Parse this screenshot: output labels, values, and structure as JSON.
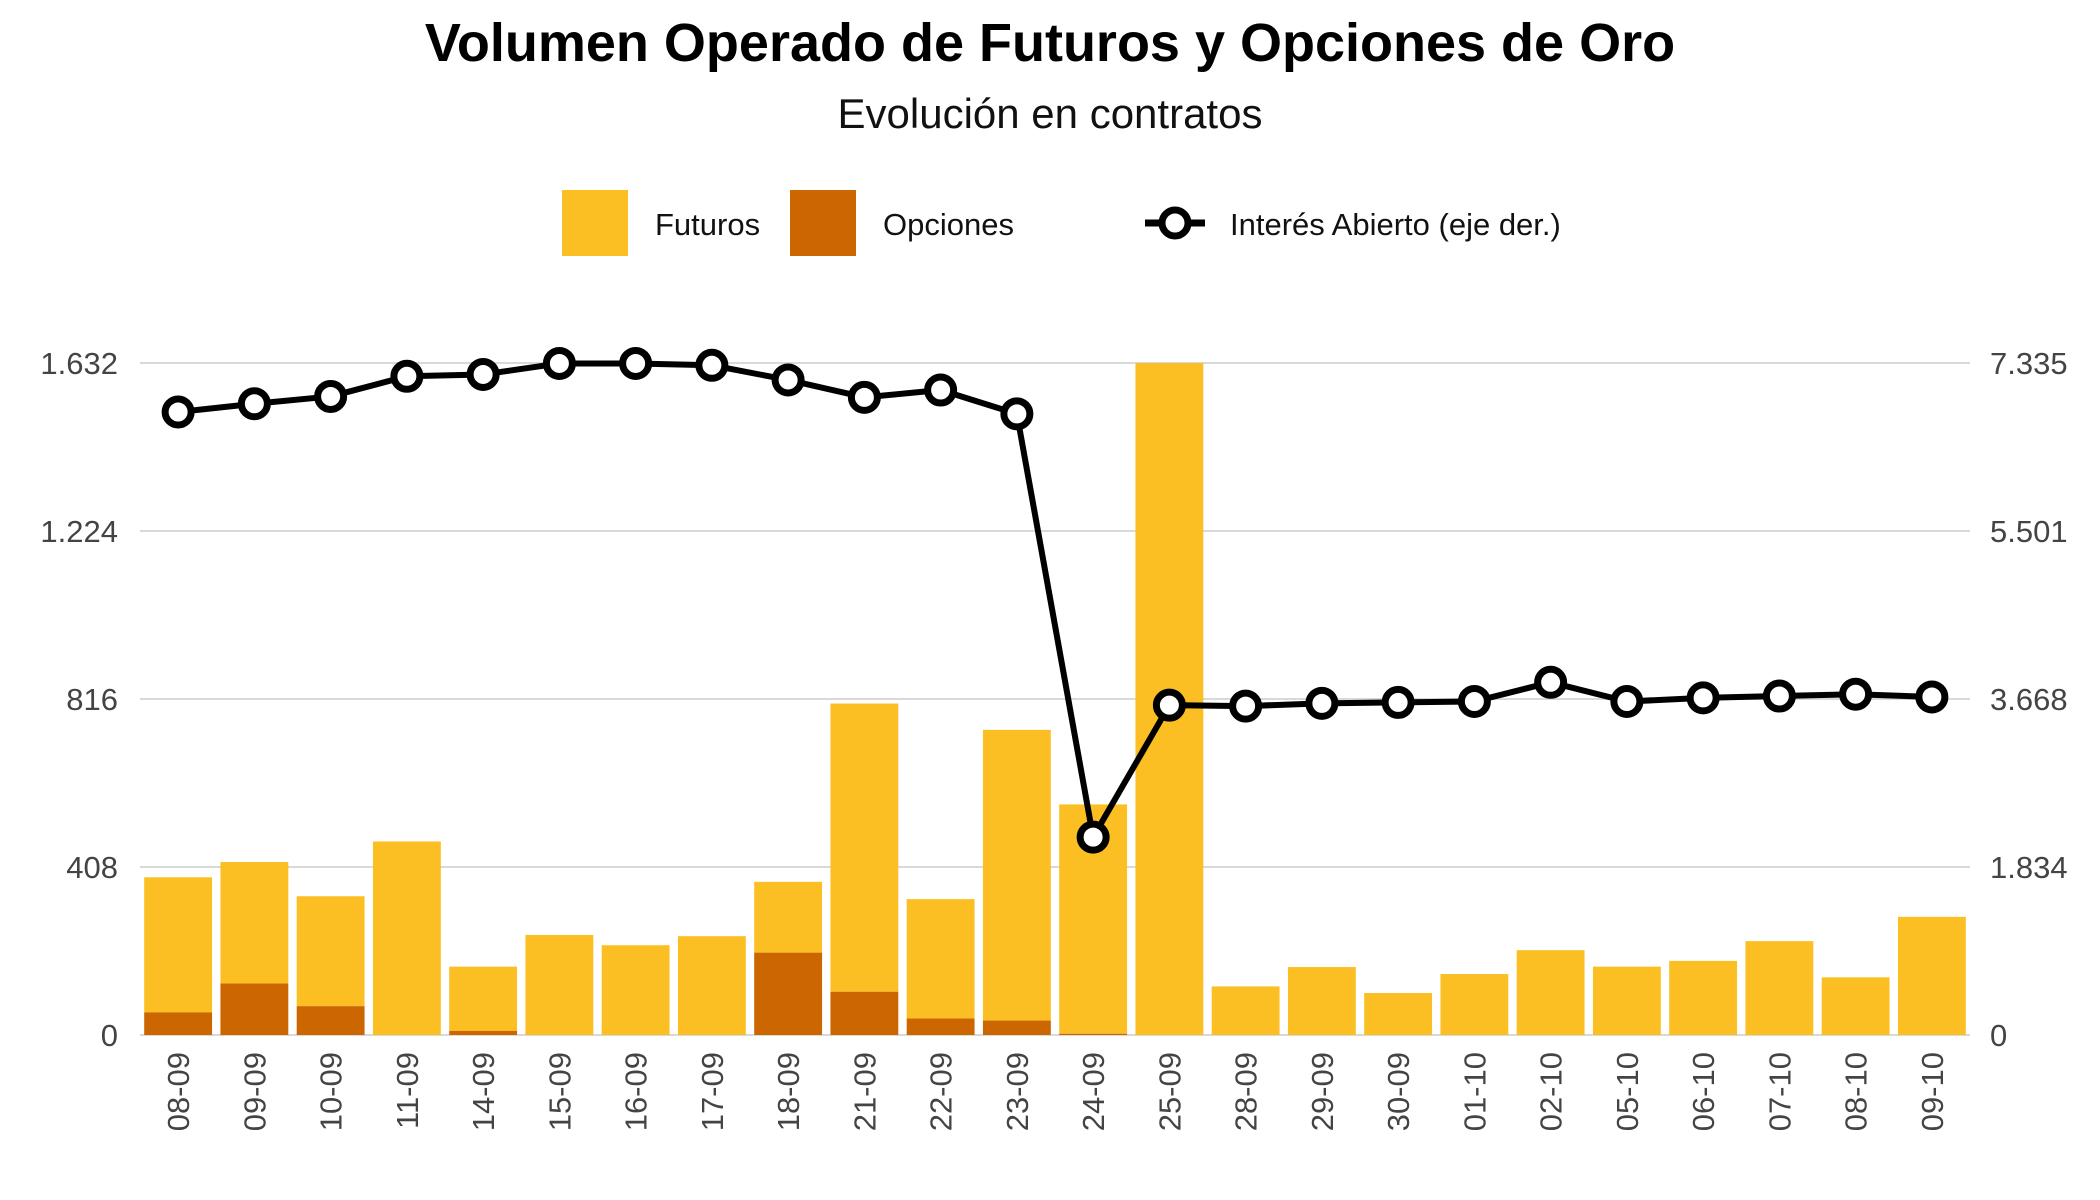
{
  "header": {
    "title": "Volumen Operado de Futuros y Opciones de Oro",
    "subtitle": "Evolución en contratos"
  },
  "legend": {
    "futuros": "Futuros",
    "opciones": "Opciones",
    "interes": "Interés Abierto (eje der.)"
  },
  "colors": {
    "futuros": "#FBBF24",
    "opciones": "#CC6600",
    "line": "#000000",
    "grid": "#D9D9D9"
  },
  "chart_data": {
    "type": "bar",
    "title": "Volumen Operado de Futuros y Opciones de Oro",
    "subtitle": "Evolución en contratos",
    "categories": [
      "08-09",
      "09-09",
      "10-09",
      "11-09",
      "14-09",
      "15-09",
      "16-09",
      "17-09",
      "18-09",
      "21-09",
      "22-09",
      "23-09",
      "24-09",
      "25-09",
      "28-09",
      "29-09",
      "30-09",
      "01-10",
      "02-10",
      "05-10",
      "06-10",
      "07-10",
      "08-10",
      "09-10"
    ],
    "series": [
      {
        "name": "Opciones",
        "type": "bar",
        "stack": "volumen",
        "axis": "left",
        "values": [
          55,
          125,
          70,
          0,
          10,
          0,
          0,
          0,
          200,
          105,
          40,
          35,
          3,
          0,
          0,
          0,
          0,
          0,
          0,
          0,
          0,
          0,
          0,
          0
        ]
      },
      {
        "name": "Futuros",
        "type": "bar",
        "stack": "volumen",
        "axis": "left",
        "values": [
          328,
          295,
          267,
          470,
          156,
          243,
          218,
          240,
          172,
          700,
          290,
          706,
          557,
          1632,
          118,
          165,
          102,
          148,
          206,
          166,
          180,
          228,
          140,
          287
        ]
      },
      {
        "name": "Interés Abierto (eje der.)",
        "type": "line",
        "axis": "right",
        "values": [
          6800,
          6890,
          6970,
          7190,
          7210,
          7330,
          7330,
          7310,
          7150,
          6960,
          7040,
          6780,
          2160,
          3600,
          3590,
          3620,
          3630,
          3640,
          3850,
          3640,
          3680,
          3700,
          3720,
          3690
        ]
      }
    ],
    "y_left": {
      "ticks": [
        0,
        408,
        816,
        1224,
        1632
      ],
      "tick_labels": [
        "0",
        "408",
        "816",
        "1.224",
        "1.632"
      ],
      "ylim": [
        0,
        1632
      ]
    },
    "y_right": {
      "ticks": [
        0,
        1834,
        3668,
        5501,
        7335
      ],
      "tick_labels": [
        "0",
        "1.834",
        "3.668",
        "5.501",
        "7.335"
      ],
      "ylim": [
        0,
        7335
      ]
    },
    "grid": true,
    "legend_position": "top"
  }
}
